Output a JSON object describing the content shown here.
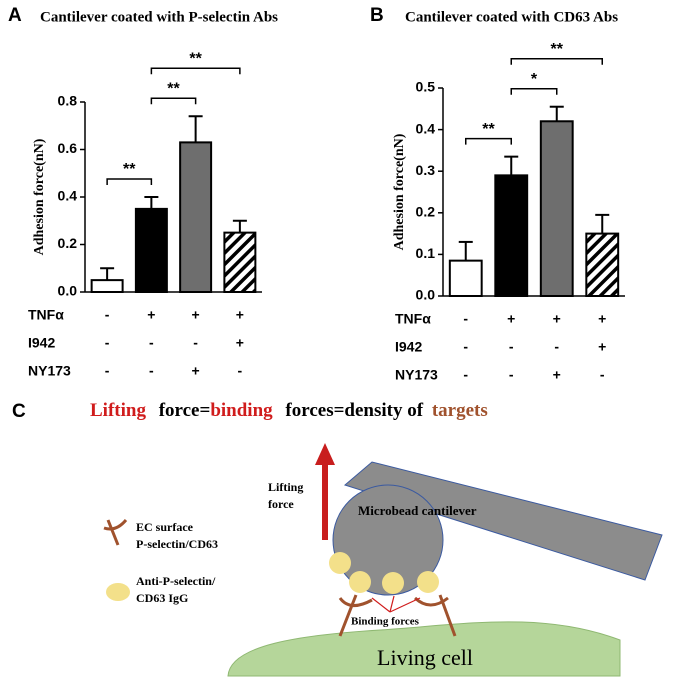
{
  "chart_data": [
    {
      "type": "bar",
      "panel": "A",
      "title": "Cantilever coated with P-selectin Abs",
      "y_label": "Adhesion force(nN)",
      "categories": [
        null,
        null,
        null,
        null
      ],
      "values": [
        0.05,
        0.35,
        0.63,
        0.25
      ],
      "errors": [
        0.05,
        0.05,
        0.11,
        0.05
      ],
      "colors": [
        "#ffffff",
        "#000000",
        "#6e6e6e",
        "hatch"
      ],
      "ylim": [
        0,
        0.8
      ],
      "yticks": [
        {
          "value": 0,
          "label": "0.0"
        },
        0.2,
        0.4,
        0.6,
        0.8
      ],
      "brackets": [
        {
          "from": 0,
          "to": 1,
          "label": "**"
        },
        {
          "from": 1,
          "to": 2,
          "label": "**"
        },
        {
          "from": 1,
          "to": 3,
          "label": "**"
        }
      ],
      "conditions": [
        {
          "name": "TNFα",
          "values": [
            "-",
            "+",
            "+",
            "+"
          ]
        },
        {
          "name": "I942",
          "values": [
            "-",
            "-",
            "-",
            "+"
          ]
        },
        {
          "name": "NY173",
          "values": [
            "-",
            "-",
            "+",
            "-"
          ]
        }
      ]
    },
    {
      "type": "bar",
      "panel": "B",
      "title": "Cantilever coated with CD63 Abs",
      "y_label": "Adhesion force(nN)",
      "categories": [
        null,
        null,
        null,
        null
      ],
      "values": [
        0.085,
        0.29,
        0.42,
        0.15
      ],
      "errors": [
        0.045,
        0.045,
        0.035,
        0.045
      ],
      "colors": [
        "#ffffff",
        "#000000",
        "#6e6e6e",
        "hatch"
      ],
      "ylim": [
        0,
        0.5
      ],
      "yticks": [
        {
          "value": 0,
          "label": "0.0"
        },
        0.1,
        0.2,
        0.3,
        0.4,
        0.5
      ],
      "brackets": [
        {
          "from": 0,
          "to": 1,
          "label": "**"
        },
        {
          "from": 1,
          "to": 2,
          "label": "*"
        },
        {
          "from": 1,
          "to": 3,
          "label": "**"
        }
      ],
      "conditions": [
        {
          "name": "TNFα",
          "values": [
            "-",
            "+",
            "+",
            "+"
          ]
        },
        {
          "name": "I942",
          "values": [
            "-",
            "-",
            "-",
            "+"
          ]
        },
        {
          "name": "NY173",
          "values": [
            "-",
            "-",
            "+",
            "-"
          ]
        }
      ]
    }
  ],
  "diagram": {
    "panel": "C",
    "title": [
      "Lifting",
      "force=",
      "binding",
      "forces=density of",
      "targets"
    ],
    "lifting_force": [
      "Lifting",
      "force"
    ],
    "cantilever": "Microbead cantilever",
    "legend": [
      [
        "EC surface",
        "P-selectin/CD63"
      ],
      [
        "Anti-P-selectin/",
        "CD63 IgG"
      ]
    ],
    "binding": "Binding forces",
    "cell": "Living cell"
  }
}
